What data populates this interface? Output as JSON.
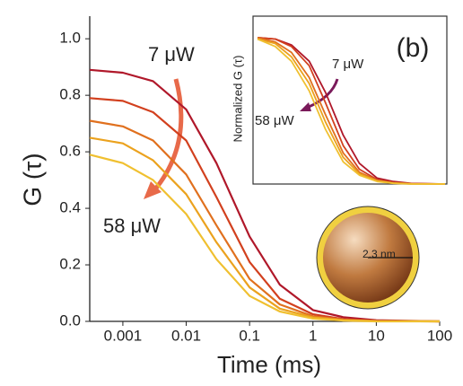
{
  "chart_data": [
    {
      "type": "line",
      "x_label": "Time (ms)",
      "y_label": "G (τ)",
      "xscale": "log",
      "xlim": [
        0.0003,
        100
      ],
      "ylim": [
        0,
        1.08
      ],
      "xticks": [
        0.001,
        0.01,
        0.1,
        1,
        10,
        100
      ],
      "yticks": [
        {
          "value": 0,
          "label": "0.0"
        },
        0.2,
        0.4,
        0.6,
        0.8,
        {
          "value": 1,
          "label": "1.0"
        }
      ],
      "x": [
        0.0003,
        0.001,
        0.003,
        0.01,
        0.03,
        0.1,
        0.3,
        1,
        3,
        10,
        100
      ],
      "series": [
        {
          "color": "#b0182a",
          "values": [
            0.89,
            0.88,
            0.85,
            0.75,
            0.56,
            0.3,
            0.13,
            0.04,
            0.015,
            0.004,
            0
          ]
        },
        {
          "color": "#d2401e",
          "values": [
            0.79,
            0.78,
            0.74,
            0.64,
            0.44,
            0.21,
            0.08,
            0.025,
            0.008,
            0.002,
            0
          ]
        },
        {
          "color": "#e0701e",
          "values": [
            0.71,
            0.69,
            0.64,
            0.52,
            0.34,
            0.15,
            0.06,
            0.018,
            0.006,
            0.001,
            0
          ]
        },
        {
          "color": "#eba21e",
          "values": [
            0.65,
            0.63,
            0.57,
            0.45,
            0.28,
            0.12,
            0.045,
            0.014,
            0.004,
            0.001,
            0
          ]
        },
        {
          "color": "#f0c030",
          "values": [
            0.59,
            0.56,
            0.5,
            0.38,
            0.22,
            0.09,
            0.035,
            0.01,
            0.003,
            0,
            0
          ]
        }
      ],
      "annotations": [
        "7 μW",
        "58 μW",
        "2.3 nm"
      ]
    },
    {
      "type": "line",
      "y_label": "Normalized G (τ)",
      "title": "(b)",
      "xscale": "log",
      "xlim": [
        0.0003,
        100
      ],
      "ylim": [
        0,
        1.05
      ],
      "x": [
        0.0003,
        0.001,
        0.003,
        0.01,
        0.03,
        0.1,
        0.3,
        1,
        3,
        10,
        100
      ],
      "series": [
        {
          "color": "#b0182a",
          "values": [
            0.99,
            0.98,
            0.94,
            0.83,
            0.62,
            0.33,
            0.14,
            0.04,
            0.017,
            0.004,
            0
          ]
        },
        {
          "color": "#d2401e",
          "values": [
            0.99,
            0.98,
            0.93,
            0.8,
            0.55,
            0.26,
            0.1,
            0.03,
            0.01,
            0.003,
            0
          ]
        },
        {
          "color": "#e0701e",
          "values": [
            0.99,
            0.96,
            0.89,
            0.72,
            0.47,
            0.21,
            0.08,
            0.025,
            0.008,
            0.001,
            0
          ]
        },
        {
          "color": "#eba21e",
          "values": [
            0.98,
            0.95,
            0.86,
            0.68,
            0.42,
            0.18,
            0.07,
            0.02,
            0.006,
            0.001,
            0
          ]
        },
        {
          "color": "#f0c030",
          "values": [
            0.98,
            0.93,
            0.83,
            0.63,
            0.37,
            0.15,
            0.06,
            0.017,
            0.005,
            0,
            0
          ]
        }
      ],
      "annotations": [
        "7 μW",
        "58 μW"
      ]
    }
  ]
}
